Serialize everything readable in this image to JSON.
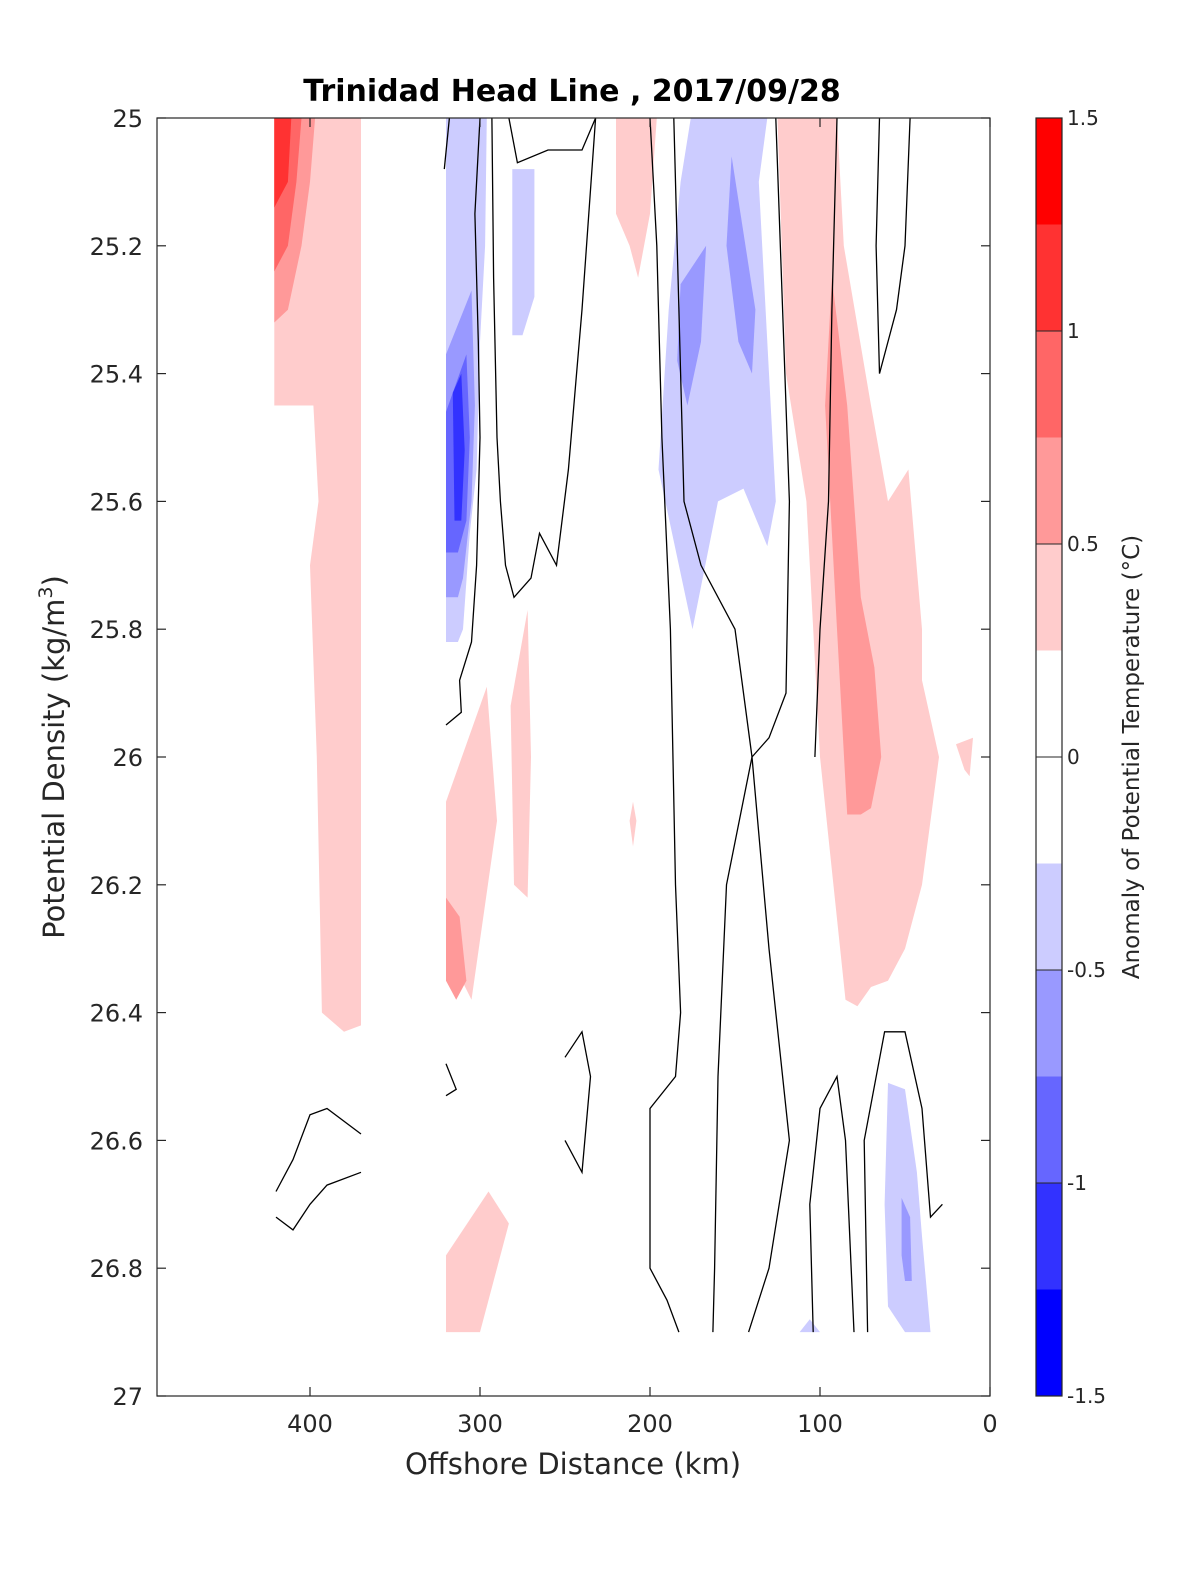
{
  "chart_data": {
    "type": "heatmap",
    "subtype": "filled-contour",
    "title": "Trinidad Head Line , 2017/09/28",
    "xlabel": "Offshore Distance (km)",
    "ylabel_main": "Potential Density (kg/m",
    "ylabel_sup": "3",
    "ylabel_close": ")",
    "xlim": [
      490,
      0
    ],
    "ylim": [
      25,
      27
    ],
    "x_ticks": [
      400,
      300,
      200,
      100,
      0
    ],
    "y_ticks": [
      25,
      25.2,
      25.4,
      25.6,
      25.8,
      26,
      26.2,
      26.4,
      26.6,
      26.8,
      27
    ],
    "y_tick_labels": [
      "25",
      "25.2",
      "25.4",
      "25.6",
      "25.8",
      "26",
      "26.2",
      "26.4",
      "26.6",
      "26.8",
      "27"
    ],
    "colorbar": {
      "label": "Anomaly of Potential Temperature (°C)",
      "min": -1.5,
      "max": 1.5,
      "ticks": [
        -1.5,
        -1,
        -0.5,
        0,
        0.5,
        1,
        1.5
      ],
      "tick_labels": [
        "-1.5",
        "-1",
        "-0.5",
        "0",
        "0.5",
        "1",
        "1.5"
      ],
      "levels": [
        {
          "lo": -1.5,
          "hi": -1.25,
          "color": "#0000ff"
        },
        {
          "lo": -1.25,
          "hi": -1.0,
          "color": "#3232ff"
        },
        {
          "lo": -1.0,
          "hi": -0.75,
          "color": "#6666ff"
        },
        {
          "lo": -0.75,
          "hi": -0.5,
          "color": "#9999ff"
        },
        {
          "lo": -0.5,
          "hi": -0.25,
          "color": "#ccccff"
        },
        {
          "lo": -0.25,
          "hi": 0.25,
          "color": "#ffffff"
        },
        {
          "lo": 0.25,
          "hi": 0.5,
          "color": "#ffcccc"
        },
        {
          "lo": 0.5,
          "hi": 0.75,
          "color": "#ff9999"
        },
        {
          "lo": 0.75,
          "hi": 1.0,
          "color": "#ff6666"
        },
        {
          "lo": 1.0,
          "hi": 1.25,
          "color": "#ff3232"
        },
        {
          "lo": 1.25,
          "hi": 1.5,
          "color": "#ff0000"
        }
      ]
    },
    "filled_regions": [
      {
        "name": "offshore-warm-band",
        "level": 0.375,
        "points": [
          [
            421,
            25.0
          ],
          [
            370,
            25.0
          ],
          [
            370,
            26.42
          ],
          [
            380,
            26.43
          ],
          [
            393,
            26.4
          ],
          [
            396,
            26.0
          ],
          [
            400,
            25.7
          ],
          [
            395,
            25.6
          ],
          [
            398,
            25.45
          ],
          [
            411,
            25.45
          ],
          [
            421,
            25.45
          ]
        ]
      },
      {
        "name": "offshore-warm-core-1",
        "level": 0.625,
        "points": [
          [
            421,
            25.0
          ],
          [
            397,
            25.0
          ],
          [
            400,
            25.1
          ],
          [
            405,
            25.2
          ],
          [
            413,
            25.3
          ],
          [
            421,
            25.32
          ]
        ]
      },
      {
        "name": "offshore-warm-core-2",
        "level": 0.875,
        "points": [
          [
            421,
            25.0
          ],
          [
            405,
            25.0
          ],
          [
            408,
            25.1
          ],
          [
            413,
            25.2
          ],
          [
            421,
            25.24
          ]
        ]
      },
      {
        "name": "offshore-warm-core-3",
        "level": 1.125,
        "points": [
          [
            421,
            25.0
          ],
          [
            411,
            25.0
          ],
          [
            413,
            25.1
          ],
          [
            421,
            25.14
          ]
        ]
      },
      {
        "name": "cold-tongue-300km",
        "level": -0.375,
        "points": [
          [
            320,
            25.0
          ],
          [
            296,
            25.0
          ],
          [
            297,
            25.2
          ],
          [
            300,
            25.35
          ],
          [
            302,
            25.55
          ],
          [
            306,
            25.65
          ],
          [
            310,
            25.8
          ],
          [
            313,
            25.82
          ],
          [
            320,
            25.82
          ]
        ]
      },
      {
        "name": "cold-tongue-300km-mid",
        "level": -0.625,
        "points": [
          [
            320,
            25.37
          ],
          [
            305,
            25.27
          ],
          [
            303,
            25.45
          ],
          [
            305,
            25.6
          ],
          [
            310,
            25.72
          ],
          [
            313,
            25.75
          ],
          [
            320,
            25.75
          ]
        ]
      },
      {
        "name": "cold-tongue-300km-core",
        "level": -0.875,
        "points": [
          [
            320,
            25.46
          ],
          [
            308,
            25.37
          ],
          [
            306,
            25.5
          ],
          [
            308,
            25.63
          ],
          [
            313,
            25.68
          ],
          [
            320,
            25.68
          ]
        ]
      },
      {
        "name": "cold-tongue-300km-max",
        "level": -1.125,
        "points": [
          [
            316,
            25.43
          ],
          [
            311,
            25.4
          ],
          [
            309,
            25.52
          ],
          [
            311,
            25.63
          ],
          [
            315,
            25.63
          ]
        ]
      },
      {
        "name": "cold-patch-275km",
        "level": -0.375,
        "points": [
          [
            281,
            25.08
          ],
          [
            268,
            25.08
          ],
          [
            268,
            25.28
          ],
          [
            275,
            25.34
          ],
          [
            281,
            25.34
          ]
        ]
      },
      {
        "name": "warm-patch-210km",
        "level": 0.375,
        "points": [
          [
            220,
            25.0
          ],
          [
            196,
            25.0
          ],
          [
            200,
            25.15
          ],
          [
            207,
            25.25
          ],
          [
            212,
            25.2
          ],
          [
            220,
            25.15
          ]
        ]
      },
      {
        "name": "cold-band-160km",
        "level": -0.375,
        "points": [
          [
            176,
            25.0
          ],
          [
            131,
            25.0
          ],
          [
            136,
            25.1
          ],
          [
            130,
            25.4
          ],
          [
            126,
            25.6
          ],
          [
            131,
            25.67
          ],
          [
            145,
            25.58
          ],
          [
            160,
            25.6
          ],
          [
            175,
            25.8
          ],
          [
            195,
            25.55
          ],
          [
            189,
            25.3
          ],
          [
            182,
            25.1
          ]
        ]
      },
      {
        "name": "cold-band-160km-mid-1",
        "level": -0.625,
        "points": [
          [
            182,
            25.26
          ],
          [
            167,
            25.2
          ],
          [
            170,
            25.35
          ],
          [
            178,
            25.45
          ],
          [
            184,
            25.38
          ]
        ]
      },
      {
        "name": "cold-band-160km-mid-2",
        "level": -0.625,
        "points": [
          [
            152,
            25.06
          ],
          [
            138,
            25.3
          ],
          [
            140,
            25.4
          ],
          [
            148,
            25.35
          ],
          [
            155,
            25.2
          ]
        ]
      },
      {
        "name": "warm-band-nearshore",
        "level": 0.375,
        "points": [
          [
            125,
            25.0
          ],
          [
            90,
            25.0
          ],
          [
            86,
            25.2
          ],
          [
            70,
            25.45
          ],
          [
            60,
            25.6
          ],
          [
            48,
            25.55
          ],
          [
            40,
            25.8
          ],
          [
            40,
            25.88
          ],
          [
            30,
            26.0
          ],
          [
            40,
            26.2
          ],
          [
            50,
            26.3
          ],
          [
            60,
            26.35
          ],
          [
            70,
            26.36
          ],
          [
            78,
            26.39
          ],
          [
            85,
            26.38
          ],
          [
            100,
            26.0
          ],
          [
            108,
            25.6
          ],
          [
            120,
            25.4
          ]
        ]
      },
      {
        "name": "warm-band-nearshore-core",
        "level": 0.625,
        "points": [
          [
            93,
            25.25
          ],
          [
            84,
            25.45
          ],
          [
            80,
            25.6
          ],
          [
            76,
            25.75
          ],
          [
            68,
            25.86
          ],
          [
            64,
            26.0
          ],
          [
            70,
            26.08
          ],
          [
            76,
            26.09
          ],
          [
            84,
            26.09
          ],
          [
            90,
            25.8
          ],
          [
            94,
            25.6
          ],
          [
            97,
            25.45
          ]
        ]
      },
      {
        "name": "warm-patch-coast",
        "level": 0.375,
        "points": [
          [
            20,
            25.98
          ],
          [
            10,
            25.97
          ],
          [
            12,
            26.03
          ],
          [
            15,
            26.02
          ]
        ]
      },
      {
        "name": "warm-patch-300km-lower",
        "level": 0.375,
        "points": [
          [
            320,
            26.07
          ],
          [
            296,
            25.89
          ],
          [
            290,
            26.1
          ],
          [
            305,
            26.38
          ],
          [
            320,
            26.3
          ]
        ]
      },
      {
        "name": "warm-patch-300km-core",
        "level": 0.625,
        "points": [
          [
            320,
            26.22
          ],
          [
            312,
            26.25
          ],
          [
            308,
            26.35
          ],
          [
            314,
            26.38
          ],
          [
            320,
            26.35
          ]
        ]
      },
      {
        "name": "warm-patch-275km",
        "level": 0.375,
        "points": [
          [
            272,
            25.77
          ],
          [
            282,
            25.92
          ],
          [
            280,
            26.2
          ],
          [
            272,
            26.22
          ],
          [
            270,
            26.0
          ]
        ]
      },
      {
        "name": "warm-dot-210km",
        "level": 0.375,
        "points": [
          [
            210,
            26.07
          ],
          [
            208,
            26.1
          ],
          [
            210,
            26.14
          ],
          [
            212,
            26.1
          ]
        ]
      },
      {
        "name": "warm-patch-290km-deep",
        "level": 0.375,
        "points": [
          [
            320,
            26.9
          ],
          [
            300,
            26.9
          ],
          [
            283,
            26.73
          ],
          [
            295,
            26.68
          ],
          [
            320,
            26.78
          ]
        ]
      },
      {
        "name": "cold-patch-50km-deep",
        "level": -0.375,
        "points": [
          [
            60,
            26.51
          ],
          [
            50,
            26.52
          ],
          [
            43,
            26.65
          ],
          [
            40,
            26.75
          ],
          [
            35,
            26.9
          ],
          [
            50,
            26.9
          ],
          [
            60,
            26.86
          ],
          [
            62,
            26.7
          ]
        ]
      },
      {
        "name": "cold-patch-50km-deep-core",
        "level": -0.625,
        "points": [
          [
            52,
            26.69
          ],
          [
            47,
            26.72
          ],
          [
            46,
            26.82
          ],
          [
            50,
            26.82
          ],
          [
            52,
            26.78
          ]
        ]
      },
      {
        "name": "cold-patch-110km-deep",
        "level": -0.375,
        "points": [
          [
            106,
            26.88
          ],
          [
            100,
            26.9
          ],
          [
            112,
            26.9
          ]
        ]
      }
    ],
    "contour_lines": [
      [
        [
          321,
          25.08
        ],
        [
          318,
          25.0
        ]
      ],
      [
        [
          300,
          25.0
        ],
        [
          303,
          25.15
        ],
        [
          301,
          25.35
        ],
        [
          300,
          25.5
        ],
        [
          302,
          25.7
        ],
        [
          305,
          25.82
        ],
        [
          312,
          25.88
        ],
        [
          311,
          25.93
        ],
        [
          320,
          25.95
        ]
      ],
      [
        [
          293,
          25.0
        ],
        [
          292,
          25.25
        ],
        [
          290,
          25.5
        ],
        [
          288,
          25.6
        ],
        [
          285,
          25.7
        ],
        [
          280,
          25.75
        ],
        [
          270,
          25.72
        ],
        [
          265,
          25.65
        ],
        [
          255,
          25.7
        ],
        [
          248,
          25.55
        ],
        [
          240,
          25.3
        ],
        [
          232,
          25.0
        ]
      ],
      [
        [
          283,
          25.0
        ],
        [
          278,
          25.07
        ],
        [
          260,
          25.05
        ],
        [
          240,
          25.05
        ],
        [
          232,
          25.0
        ]
      ],
      [
        [
          200,
          25.0
        ],
        [
          196,
          25.2
        ],
        [
          193,
          25.5
        ],
        [
          188,
          25.8
        ],
        [
          185,
          26.2
        ],
        [
          182,
          26.4
        ],
        [
          185,
          26.5
        ],
        [
          200,
          26.55
        ],
        [
          200,
          26.8
        ],
        [
          190,
          26.85
        ],
        [
          183,
          26.9
        ]
      ],
      [
        [
          186,
          25.0
        ],
        [
          183,
          25.3
        ],
        [
          180,
          25.6
        ],
        [
          170,
          25.7
        ],
        [
          150,
          25.8
        ],
        [
          140,
          26.0
        ],
        [
          130,
          26.3
        ],
        [
          118,
          26.6
        ],
        [
          130,
          26.8
        ],
        [
          142,
          26.9
        ]
      ],
      [
        [
          126,
          25.0
        ],
        [
          122,
          25.3
        ],
        [
          118,
          25.6
        ],
        [
          120,
          25.9
        ],
        [
          130,
          25.97
        ],
        [
          140,
          26.0
        ],
        [
          155,
          26.2
        ],
        [
          160,
          26.5
        ],
        [
          162,
          26.8
        ],
        [
          163,
          26.9
        ]
      ],
      [
        [
          90,
          25.0
        ],
        [
          93,
          25.3
        ],
        [
          95,
          25.6
        ],
        [
          100,
          25.8
        ],
        [
          103,
          26.0
        ]
      ],
      [
        [
          65,
          25.0
        ],
        [
          67,
          25.2
        ],
        [
          65,
          25.4
        ],
        [
          55,
          25.3
        ],
        [
          50,
          25.2
        ],
        [
          47,
          25.0
        ]
      ],
      [
        [
          420,
          26.68
        ],
        [
          410,
          26.63
        ],
        [
          400,
          26.56
        ],
        [
          390,
          26.55
        ],
        [
          370,
          26.59
        ]
      ],
      [
        [
          420,
          26.72
        ],
        [
          410,
          26.74
        ],
        [
          400,
          26.7
        ],
        [
          390,
          26.67
        ],
        [
          370,
          26.65
        ]
      ],
      [
        [
          250,
          26.47
        ],
        [
          240,
          26.43
        ],
        [
          235,
          26.5
        ],
        [
          240,
          26.65
        ],
        [
          250,
          26.6
        ]
      ],
      [
        [
          320,
          26.48
        ],
        [
          314,
          26.52
        ],
        [
          320,
          26.53
        ]
      ],
      [
        [
          104,
          26.9
        ],
        [
          106,
          26.7
        ],
        [
          100,
          26.55
        ],
        [
          90,
          26.5
        ],
        [
          85,
          26.6
        ],
        [
          80,
          26.9
        ]
      ],
      [
        [
          72,
          26.9
        ],
        [
          74,
          26.6
        ],
        [
          62,
          26.43
        ],
        [
          50,
          26.43
        ],
        [
          40,
          26.55
        ],
        [
          35,
          26.72
        ],
        [
          28,
          26.7
        ]
      ]
    ]
  }
}
